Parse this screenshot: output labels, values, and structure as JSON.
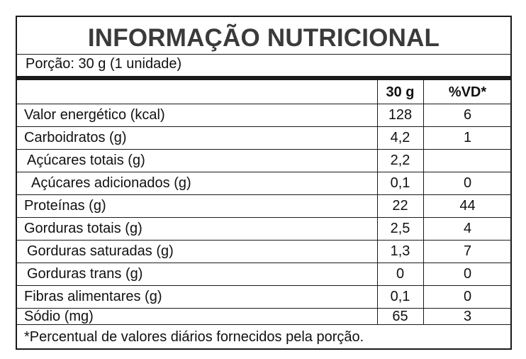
{
  "title": "INFORMAÇÃO NUTRICIONAL",
  "portion": "Porção: 30 g (1 unidade)",
  "columns": {
    "amount": "30 g",
    "vd": "%VD*"
  },
  "rows": [
    {
      "name": "Valor energético (kcal)",
      "amount": "128",
      "vd": "6"
    },
    {
      "name": "Carboidratos (g)",
      "amount": "4,2",
      "vd": "1"
    },
    {
      "name": "Açúcares totais (g)",
      "amount": "2,2",
      "vd": ""
    },
    {
      "name": "Açúcares adicionados (g)",
      "amount": "0,1",
      "vd": "0"
    },
    {
      "name": "Proteínas (g)",
      "amount": "22",
      "vd": "44"
    },
    {
      "name": "Gorduras totais (g)",
      "amount": "2,5",
      "vd": "4"
    },
    {
      "name": "Gorduras saturadas (g)",
      "amount": "1,3",
      "vd": "7"
    },
    {
      "name": "Gorduras trans (g)",
      "amount": "0",
      "vd": "0"
    },
    {
      "name": "Fibras alimentares (g)",
      "amount": "0,1",
      "vd": "0"
    },
    {
      "name": "Sódio (mg)",
      "amount": "65",
      "vd": "3"
    }
  ],
  "footnote": "*Percentual de valores diários fornecidos pela porção."
}
